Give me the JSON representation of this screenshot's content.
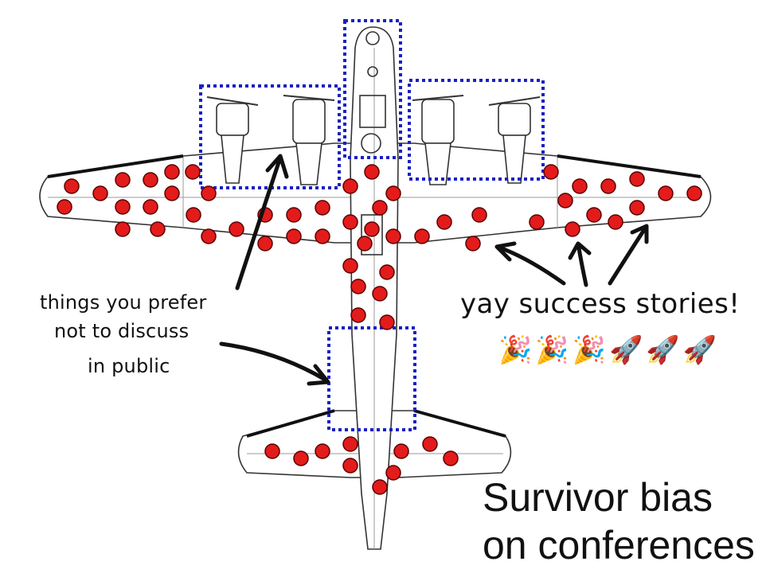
{
  "annotations": {
    "left_note": [
      "things you prefer",
      "not to discuss",
      "in public"
    ],
    "right_note": "yay success stories!"
  },
  "emoji": [
    "🎉",
    "🎉",
    "🎉",
    "🚀",
    "🚀",
    "🚀"
  ],
  "title": [
    "Survivor bias",
    "on conferences"
  ],
  "colors": {
    "hit_dot": "#e31b1b",
    "dashed_box": "#1a1fc4",
    "outline": "#333333",
    "arrow": "#111111"
  }
}
